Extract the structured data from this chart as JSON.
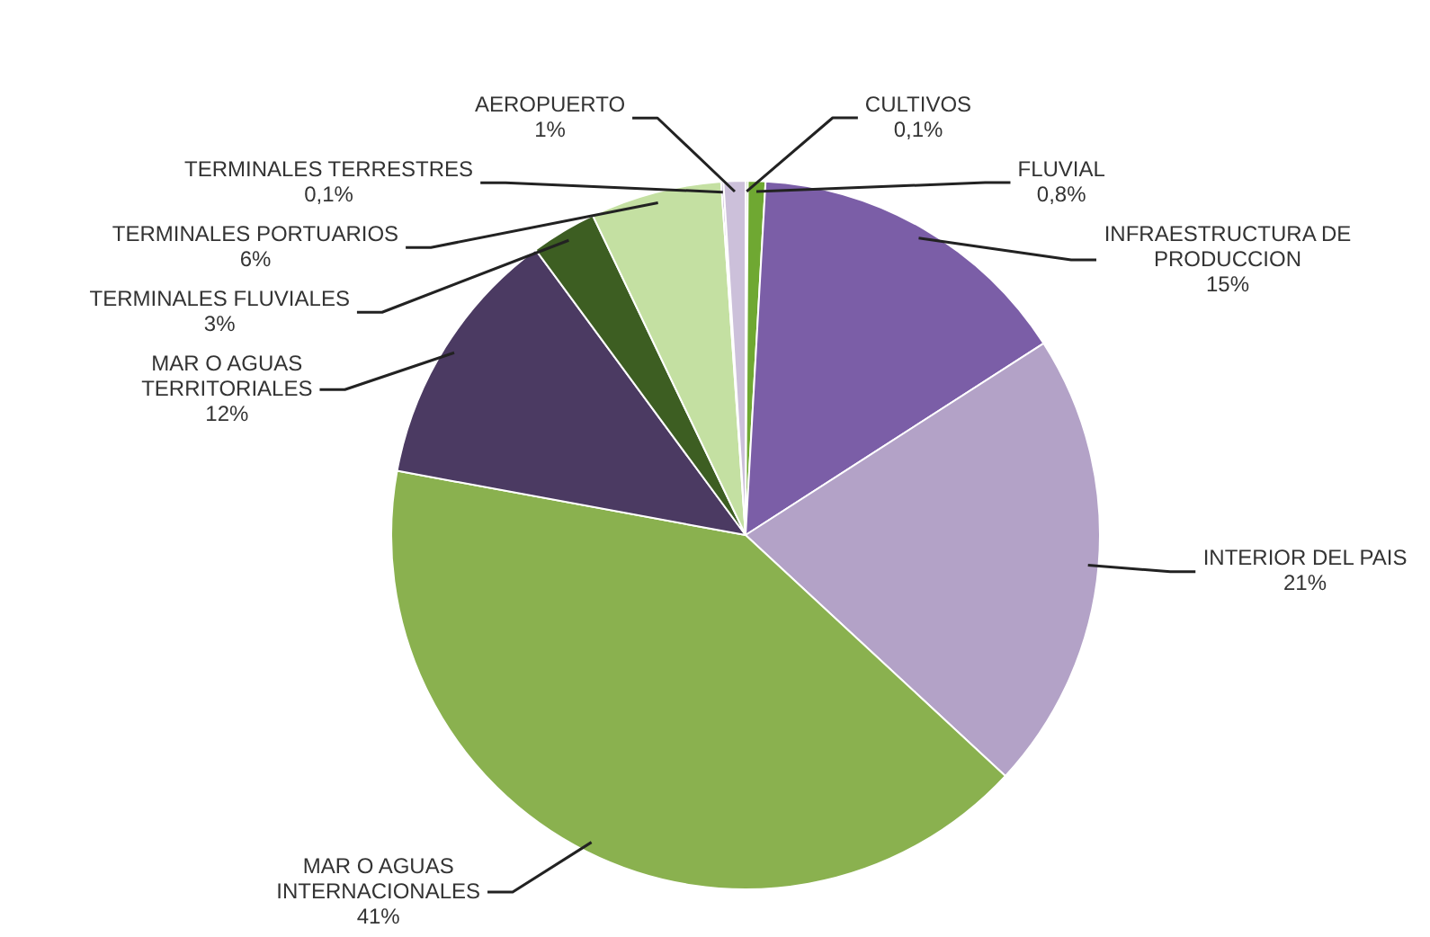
{
  "chart_data": {
    "type": "pie",
    "categories": [
      "CULTIVOS",
      "FLUVIAL",
      "INFRAESTRUCTURA DE PRODUCCION",
      "INTERIOR DEL PAIS",
      "MAR O AGUAS INTERNACIONALES",
      "MAR O AGUAS TERRITORIALES",
      "TERMINALES FLUVIALES",
      "TERMINALES PORTUARIOS",
      "TERMINALES TERRESTRES",
      "AEROPUERTO"
    ],
    "values": [
      0.1,
      0.8,
      15,
      21,
      41,
      12,
      3,
      6,
      0.1,
      1
    ],
    "value_labels": [
      "0,1%",
      "0,8%",
      "15%",
      "21%",
      "41%",
      "12%",
      "3%",
      "6%",
      "0,1%",
      "1%"
    ],
    "colors": [
      "#3f6b1f",
      "#6fa832",
      "#7b5ea7",
      "#b3a2c7",
      "#8ab14f",
      "#4b3a62",
      "#3d5e22",
      "#c4e0a2",
      "#8064a2",
      "#ccc0da"
    ],
    "legend": false
  }
}
